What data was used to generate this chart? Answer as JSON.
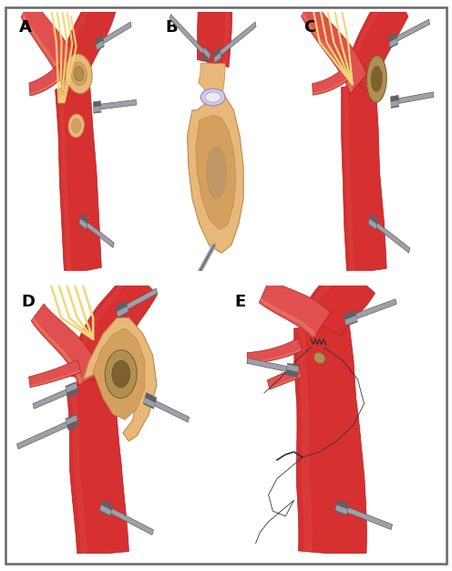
{
  "background_color": "#ffffff",
  "border_color": "#666666",
  "panel_labels": [
    "A",
    "B",
    "C",
    "D",
    "E"
  ],
  "label_fontsize": 13,
  "label_fontweight": "bold",
  "artery_red": "#d63030",
  "artery_red_light": "#e05050",
  "artery_red_dark": "#b02020",
  "artery_red_shadow": "#c82828",
  "skin_color": "#e8b87a",
  "skin_mid": "#d4a060",
  "skin_dark": "#c08848",
  "plaque_color": "#b09050",
  "plaque_dark": "#806030",
  "nerve_color": "#f0d878",
  "nerve_dark": "#d8b840",
  "clamp_color": "#a0a0a8",
  "clamp_dark": "#606068",
  "clamp_light": "#c8c8d0",
  "suture_color": "#303030",
  "white": "#ffffff"
}
